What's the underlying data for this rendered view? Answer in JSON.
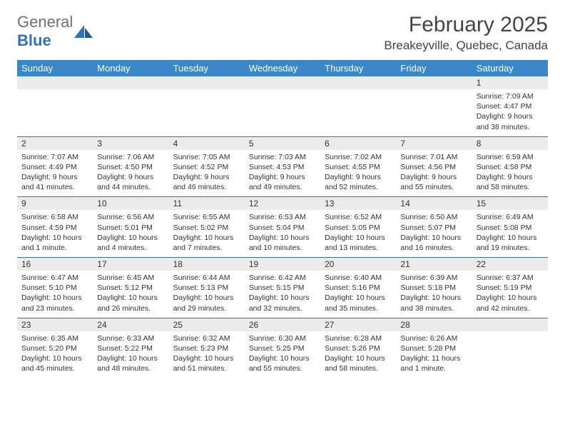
{
  "brand": {
    "gray_text": "General",
    "blue_text": "Blue"
  },
  "header": {
    "month_title": "February 2025",
    "location": "Breakeyville, Quebec, Canada"
  },
  "colors": {
    "header_bg": "#3b87c8",
    "header_fg": "#ffffff",
    "daynum_bg": "#ececec",
    "rule": "#2f72b8",
    "text": "#333333",
    "bg": "#ffffff"
  },
  "day_names": [
    "Sunday",
    "Monday",
    "Tuesday",
    "Wednesday",
    "Thursday",
    "Friday",
    "Saturday"
  ],
  "labels": {
    "sunrise": "Sunrise:",
    "sunset": "Sunset:",
    "daylight": "Daylight:"
  },
  "weeks": [
    [
      null,
      null,
      null,
      null,
      null,
      null,
      {
        "n": "1",
        "sr": "7:09 AM",
        "ss": "4:47 PM",
        "dl": "9 hours and 38 minutes."
      }
    ],
    [
      {
        "n": "2",
        "sr": "7:07 AM",
        "ss": "4:49 PM",
        "dl": "9 hours and 41 minutes."
      },
      {
        "n": "3",
        "sr": "7:06 AM",
        "ss": "4:50 PM",
        "dl": "9 hours and 44 minutes."
      },
      {
        "n": "4",
        "sr": "7:05 AM",
        "ss": "4:52 PM",
        "dl": "9 hours and 46 minutes."
      },
      {
        "n": "5",
        "sr": "7:03 AM",
        "ss": "4:53 PM",
        "dl": "9 hours and 49 minutes."
      },
      {
        "n": "6",
        "sr": "7:02 AM",
        "ss": "4:55 PM",
        "dl": "9 hours and 52 minutes."
      },
      {
        "n": "7",
        "sr": "7:01 AM",
        "ss": "4:56 PM",
        "dl": "9 hours and 55 minutes."
      },
      {
        "n": "8",
        "sr": "6:59 AM",
        "ss": "4:58 PM",
        "dl": "9 hours and 58 minutes."
      }
    ],
    [
      {
        "n": "9",
        "sr": "6:58 AM",
        "ss": "4:59 PM",
        "dl": "10 hours and 1 minute."
      },
      {
        "n": "10",
        "sr": "6:56 AM",
        "ss": "5:01 PM",
        "dl": "10 hours and 4 minutes."
      },
      {
        "n": "11",
        "sr": "6:55 AM",
        "ss": "5:02 PM",
        "dl": "10 hours and 7 minutes."
      },
      {
        "n": "12",
        "sr": "6:53 AM",
        "ss": "5:04 PM",
        "dl": "10 hours and 10 minutes."
      },
      {
        "n": "13",
        "sr": "6:52 AM",
        "ss": "5:05 PM",
        "dl": "10 hours and 13 minutes."
      },
      {
        "n": "14",
        "sr": "6:50 AM",
        "ss": "5:07 PM",
        "dl": "10 hours and 16 minutes."
      },
      {
        "n": "15",
        "sr": "6:49 AM",
        "ss": "5:08 PM",
        "dl": "10 hours and 19 minutes."
      }
    ],
    [
      {
        "n": "16",
        "sr": "6:47 AM",
        "ss": "5:10 PM",
        "dl": "10 hours and 23 minutes."
      },
      {
        "n": "17",
        "sr": "6:45 AM",
        "ss": "5:12 PM",
        "dl": "10 hours and 26 minutes."
      },
      {
        "n": "18",
        "sr": "6:44 AM",
        "ss": "5:13 PM",
        "dl": "10 hours and 29 minutes."
      },
      {
        "n": "19",
        "sr": "6:42 AM",
        "ss": "5:15 PM",
        "dl": "10 hours and 32 minutes."
      },
      {
        "n": "20",
        "sr": "6:40 AM",
        "ss": "5:16 PM",
        "dl": "10 hours and 35 minutes."
      },
      {
        "n": "21",
        "sr": "6:39 AM",
        "ss": "5:18 PM",
        "dl": "10 hours and 38 minutes."
      },
      {
        "n": "22",
        "sr": "6:37 AM",
        "ss": "5:19 PM",
        "dl": "10 hours and 42 minutes."
      }
    ],
    [
      {
        "n": "23",
        "sr": "6:35 AM",
        "ss": "5:20 PM",
        "dl": "10 hours and 45 minutes."
      },
      {
        "n": "24",
        "sr": "6:33 AM",
        "ss": "5:22 PM",
        "dl": "10 hours and 48 minutes."
      },
      {
        "n": "25",
        "sr": "6:32 AM",
        "ss": "5:23 PM",
        "dl": "10 hours and 51 minutes."
      },
      {
        "n": "26",
        "sr": "6:30 AM",
        "ss": "5:25 PM",
        "dl": "10 hours and 55 minutes."
      },
      {
        "n": "27",
        "sr": "6:28 AM",
        "ss": "5:26 PM",
        "dl": "10 hours and 58 minutes."
      },
      {
        "n": "28",
        "sr": "6:26 AM",
        "ss": "5:28 PM",
        "dl": "11 hours and 1 minute."
      },
      null
    ]
  ]
}
